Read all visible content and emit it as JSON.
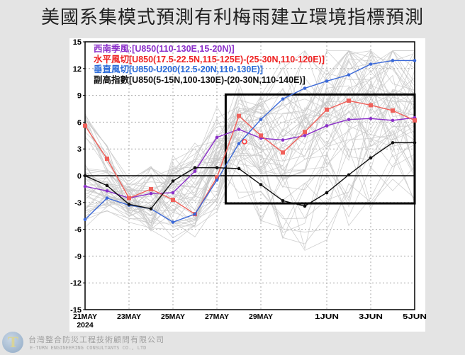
{
  "title": "美國系集模式預測有利梅雨建立環境指標預測",
  "company": {
    "name_zh": "台灣整合防災工程技術顧問有限公司",
    "name_en": "E-TURN ENGINEERING CONSULTANTS CO., LTD",
    "logo_letters": "T"
  },
  "chart_data": {
    "type": "line",
    "x": [
      "21MAY",
      "22MAY",
      "23MAY",
      "24MAY",
      "25MAY",
      "26MAY",
      "27MAY",
      "28MAY",
      "29MAY",
      "30MAY",
      "31MAY",
      "1JUN",
      "2JUN",
      "3JUN",
      "4JUN",
      "5JUN"
    ],
    "x_tick_labels": [
      "21MAY",
      "23MAY",
      "25MAY",
      "27MAY",
      "29MAY",
      "1JUN",
      "3JUN",
      "5JUN"
    ],
    "x_year_label": "2024",
    "ylim": [
      -15,
      15
    ],
    "y_ticks": [
      15,
      12,
      9,
      6,
      3,
      0,
      -3,
      -6,
      -9,
      -12,
      -15
    ],
    "grid": true,
    "legend_placement": "top-left",
    "series": [
      {
        "name": "西南季風:[U850(110-130E,15-20N)]",
        "color": "#8b2fc9",
        "marker": "circle",
        "values": [
          -1.2,
          -1.7,
          -2.5,
          -2.0,
          -1.9,
          0.5,
          4.3,
          5.2,
          4.2,
          4.0,
          4.5,
          5.6,
          6.3,
          6.4,
          6.2,
          6.5
        ]
      },
      {
        "name": "水平風切[U850(17.5-22.5N,115-125E)-(25-30N,110-120E)]",
        "color": "#f0605a",
        "marker": "square",
        "values": [
          5.6,
          1.9,
          -2.5,
          -1.5,
          -2.7,
          -4.3,
          -0.2,
          6.7,
          4.5,
          2.6,
          4.9,
          7.4,
          8.4,
          7.9,
          7.3,
          6.2
        ]
      },
      {
        "name": "垂直風切[U850-U200(12.5-20N,110-130E)]",
        "color": "#3a68d8",
        "marker": "circle",
        "values": [
          -4.9,
          -2.5,
          -3.3,
          -3.7,
          -5.2,
          -4.3,
          -0.5,
          3.6,
          6.3,
          8.6,
          9.8,
          10.6,
          11.3,
          12.5,
          12.9,
          12.9
        ]
      },
      {
        "name": "副高指數[U850(5-15N,100-130E)-(20-30N,110-140E)]",
        "color": "#111111",
        "marker": "circle",
        "values": [
          0.0,
          -1.1,
          -3.2,
          -3.7,
          -0.6,
          0.9,
          0.9,
          0.8,
          -1.0,
          -2.8,
          -3.4,
          -1.9,
          0.1,
          2.0,
          3.7,
          3.7
        ]
      }
    ],
    "ensemble_members_color": "#c8c8c8",
    "highlight_box": {
      "x_from": "27.4MAY",
      "x_to": "5JUN",
      "y_from": -3.1,
      "y_to": 9.1
    }
  }
}
